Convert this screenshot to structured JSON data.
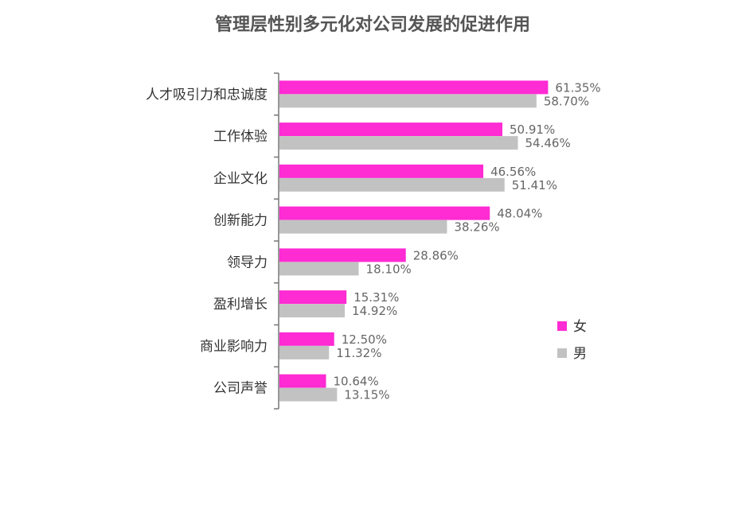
{
  "chart_data": {
    "type": "bar",
    "orientation": "horizontal",
    "title": "管理层性别多元化对公司发展的促进作用",
    "categories": [
      "人才吸引力和忠诚度",
      "工作体验",
      "企业文化",
      "创新能力",
      "领导力",
      "盈利增长",
      "商业影响力",
      "公司声誉"
    ],
    "series": [
      {
        "name": "女",
        "color": "#ff2bd3",
        "values": [
          61.35,
          50.91,
          46.56,
          48.04,
          28.86,
          15.31,
          12.5,
          10.64
        ],
        "labels": [
          "61.35%",
          "50.91%",
          "46.56%",
          "48.04%",
          "28.86%",
          "15.31%",
          "12.50%",
          "10.64%"
        ]
      },
      {
        "name": "男",
        "color": "#c2c2c2",
        "values": [
          58.7,
          54.46,
          51.41,
          38.26,
          18.1,
          14.92,
          11.32,
          13.15
        ],
        "labels": [
          "58.70%",
          "54.46%",
          "51.41%",
          "38.26%",
          "18.10%",
          "14.92%",
          "11.32%",
          "13.15%"
        ]
      }
    ],
    "xlim": [
      0,
      70
    ],
    "grid": false,
    "legend_position": "right"
  }
}
